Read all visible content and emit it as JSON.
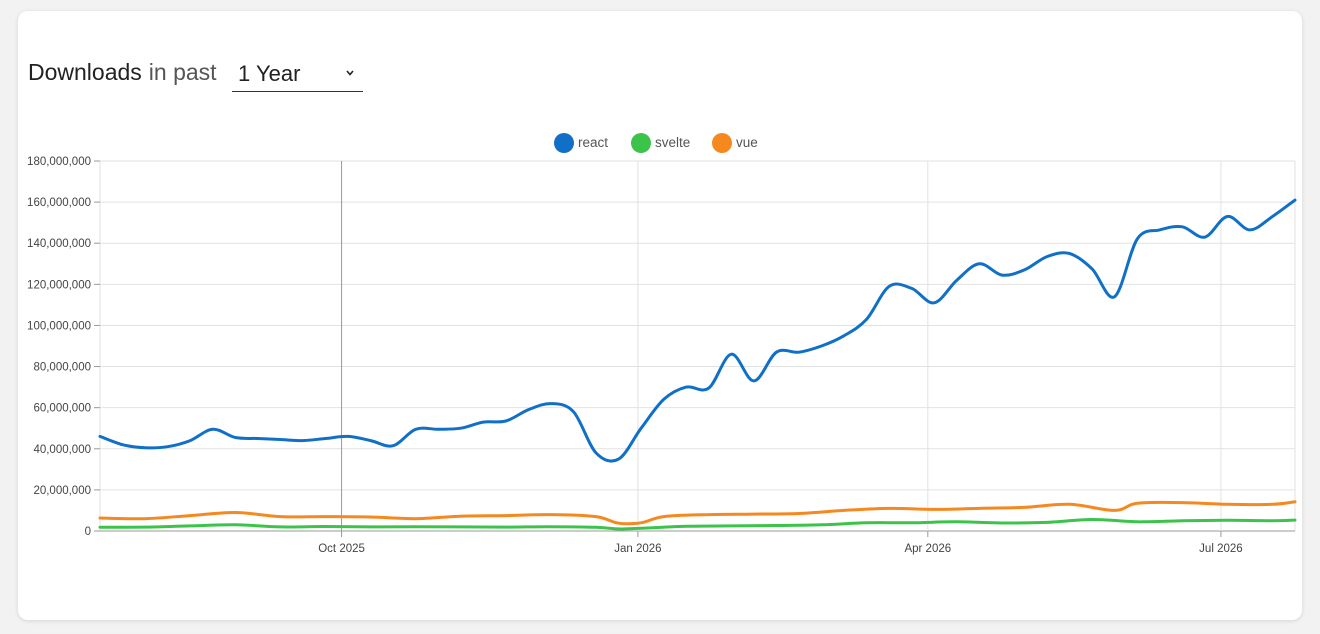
{
  "header": {
    "title_bold": "Downloads",
    "title_rest": "in past",
    "period": "1 Year"
  },
  "colors": {
    "react": "#1070c8",
    "svelte": "#3cc44a",
    "vue": "#f5891f"
  },
  "chart_data": {
    "type": "line",
    "title": "",
    "xlabel": "",
    "ylabel": "",
    "ylim": [
      0,
      180000000
    ],
    "xlim": [
      "2025-07-18",
      "2026-07-24"
    ],
    "yticks": [
      0,
      20000000,
      40000000,
      60000000,
      80000000,
      100000000,
      120000000,
      140000000,
      160000000,
      180000000
    ],
    "ytick_labels": [
      "0",
      "20,000,000",
      "40,000,000",
      "60,000,000",
      "80,000,000",
      "100,000,000",
      "120,000,000",
      "140,000,000",
      "160,000,000",
      "180,000,000"
    ],
    "xticks": [
      "2025-10-01",
      "2026-01-01",
      "2026-04-01",
      "2026-07-01"
    ],
    "xtick_labels": [
      "Oct 2025",
      "Jan 2026",
      "Apr 2026",
      "Jul 2026"
    ],
    "grid": true,
    "legend": "top-center",
    "series": [
      {
        "name": "react",
        "color": "#1070c8",
        "points": [
          [
            "2025-07-18",
            46000000
          ],
          [
            "2025-07-25",
            42000000
          ],
          [
            "2025-08-01",
            40500000
          ],
          [
            "2025-08-08",
            41000000
          ],
          [
            "2025-08-15",
            44000000
          ],
          [
            "2025-08-22",
            49500000
          ],
          [
            "2025-08-29",
            45500000
          ],
          [
            "2025-09-05",
            45000000
          ],
          [
            "2025-09-12",
            44500000
          ],
          [
            "2025-09-19",
            44000000
          ],
          [
            "2025-09-26",
            45000000
          ],
          [
            "2025-10-03",
            46000000
          ],
          [
            "2025-10-10",
            44000000
          ],
          [
            "2025-10-17",
            41500000
          ],
          [
            "2025-10-24",
            49500000
          ],
          [
            "2025-10-31",
            49500000
          ],
          [
            "2025-11-07",
            50000000
          ],
          [
            "2025-11-14",
            53000000
          ],
          [
            "2025-11-21",
            53500000
          ],
          [
            "2025-11-28",
            59000000
          ],
          [
            "2025-12-05",
            62000000
          ],
          [
            "2025-12-12",
            58000000
          ],
          [
            "2025-12-19",
            38000000
          ],
          [
            "2025-12-26",
            35000000
          ],
          [
            "2026-01-02",
            50000000
          ],
          [
            "2026-01-09",
            64000000
          ],
          [
            "2026-01-16",
            70000000
          ],
          [
            "2026-01-23",
            69500000
          ],
          [
            "2026-01-30",
            86000000
          ],
          [
            "2026-02-06",
            73000000
          ],
          [
            "2026-02-13",
            87000000
          ],
          [
            "2026-02-20",
            87000000
          ],
          [
            "2026-02-27",
            90000000
          ],
          [
            "2026-03-06",
            95000000
          ],
          [
            "2026-03-13",
            103000000
          ],
          [
            "2026-03-20",
            119000000
          ],
          [
            "2026-03-27",
            118000000
          ],
          [
            "2026-04-03",
            111000000
          ],
          [
            "2026-04-10",
            122000000
          ],
          [
            "2026-04-17",
            130000000
          ],
          [
            "2026-04-24",
            124500000
          ],
          [
            "2026-05-01",
            127000000
          ],
          [
            "2026-05-08",
            133500000
          ],
          [
            "2026-05-15",
            135000000
          ],
          [
            "2026-05-22",
            127500000
          ],
          [
            "2026-05-29",
            114000000
          ],
          [
            "2026-06-05",
            142000000
          ],
          [
            "2026-06-12",
            146500000
          ],
          [
            "2026-06-19",
            148000000
          ],
          [
            "2026-06-26",
            143000000
          ],
          [
            "2026-07-03",
            153000000
          ],
          [
            "2026-07-10",
            146500000
          ],
          [
            "2026-07-17",
            153000000
          ],
          [
            "2026-07-24",
            161000000
          ]
        ]
      },
      {
        "name": "svelte",
        "color": "#3cc44a",
        "points": [
          [
            "2025-07-18",
            1800000
          ],
          [
            "2025-08-01",
            1900000
          ],
          [
            "2025-08-15",
            2500000
          ],
          [
            "2025-08-29",
            3000000
          ],
          [
            "2025-09-12",
            2000000
          ],
          [
            "2025-09-26",
            2200000
          ],
          [
            "2025-10-10",
            2000000
          ],
          [
            "2025-10-24",
            2100000
          ],
          [
            "2025-11-07",
            2000000
          ],
          [
            "2025-11-21",
            1900000
          ],
          [
            "2025-12-05",
            2100000
          ],
          [
            "2025-12-19",
            1800000
          ],
          [
            "2025-12-26",
            1000000
          ],
          [
            "2026-01-02",
            1300000
          ],
          [
            "2026-01-16",
            2300000
          ],
          [
            "2026-01-30",
            2500000
          ],
          [
            "2026-02-13",
            2700000
          ],
          [
            "2026-02-27",
            3000000
          ],
          [
            "2026-03-13",
            4000000
          ],
          [
            "2026-03-27",
            4000000
          ],
          [
            "2026-04-10",
            4500000
          ],
          [
            "2026-04-24",
            3900000
          ],
          [
            "2026-05-08",
            4200000
          ],
          [
            "2026-05-22",
            5600000
          ],
          [
            "2026-06-05",
            4500000
          ],
          [
            "2026-06-19",
            5000000
          ],
          [
            "2026-07-03",
            5200000
          ],
          [
            "2026-07-17",
            5000000
          ],
          [
            "2026-07-24",
            5300000
          ]
        ]
      },
      {
        "name": "vue",
        "color": "#f5891f",
        "points": [
          [
            "2025-07-18",
            6300000
          ],
          [
            "2025-08-01",
            6000000
          ],
          [
            "2025-08-15",
            7500000
          ],
          [
            "2025-08-29",
            9000000
          ],
          [
            "2025-09-12",
            7000000
          ],
          [
            "2025-09-26",
            7000000
          ],
          [
            "2025-10-10",
            6800000
          ],
          [
            "2025-10-24",
            6000000
          ],
          [
            "2025-11-07",
            7200000
          ],
          [
            "2025-11-21",
            7500000
          ],
          [
            "2025-12-05",
            8000000
          ],
          [
            "2025-12-19",
            7000000
          ],
          [
            "2025-12-26",
            3800000
          ],
          [
            "2026-01-02",
            4000000
          ],
          [
            "2026-01-09",
            7000000
          ],
          [
            "2026-01-23",
            8000000
          ],
          [
            "2026-02-06",
            8200000
          ],
          [
            "2026-02-20",
            8500000
          ],
          [
            "2026-03-06",
            10000000
          ],
          [
            "2026-03-20",
            11000000
          ],
          [
            "2026-04-03",
            10500000
          ],
          [
            "2026-04-17",
            11000000
          ],
          [
            "2026-05-01",
            11500000
          ],
          [
            "2026-05-15",
            13000000
          ],
          [
            "2026-05-29",
            10000000
          ],
          [
            "2026-06-05",
            13500000
          ],
          [
            "2026-06-19",
            13800000
          ],
          [
            "2026-07-03",
            13000000
          ],
          [
            "2026-07-17",
            13000000
          ],
          [
            "2026-07-24",
            14200000
          ]
        ]
      }
    ]
  }
}
